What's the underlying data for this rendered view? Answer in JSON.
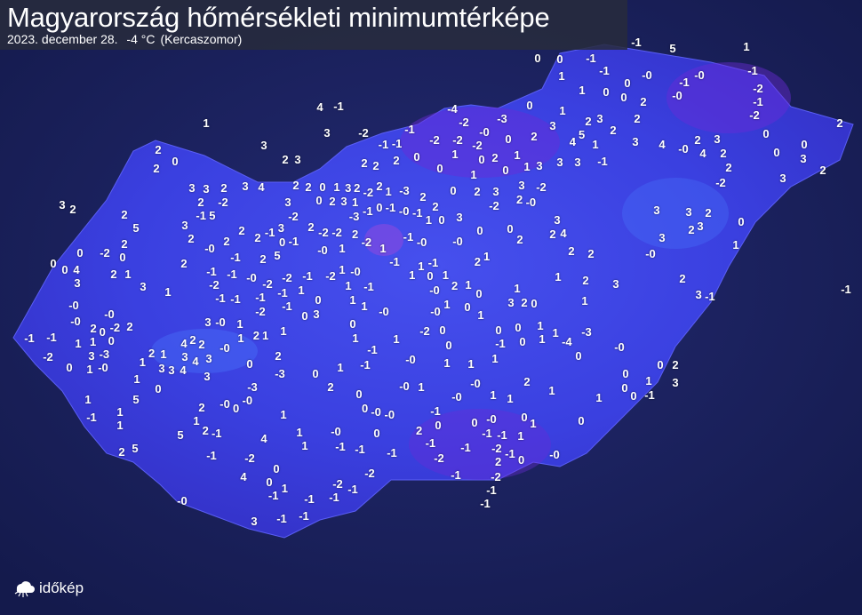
{
  "header": {
    "title": "Magyarország hőmérsékleti minimumtérképe",
    "date": "2023. december 28.",
    "min_value": "-4 °C",
    "min_location": "(Kercaszomor)"
  },
  "logo": {
    "text": "időkép",
    "icon": "cloud-sun-icon"
  },
  "colors": {
    "background": "#1b2160",
    "map_fill": "#3b3fe0",
    "cold_areas": "#6a2ad8",
    "header_bg": "#2a2d3c"
  },
  "readings": [
    "0",
    "-1",
    "-1",
    "5",
    "1",
    "0",
    "-1",
    "1",
    "-0",
    "-0",
    "-1",
    "-1",
    "1",
    "0",
    "0",
    "2",
    "0",
    "-0",
    "-2",
    "-1",
    "-2",
    "2",
    "1",
    "4",
    "-1",
    "3",
    "3",
    "2",
    "3",
    "2",
    "0",
    "2",
    "-4",
    "-3",
    "0",
    "-2",
    "-1",
    "1",
    "-2",
    "-0",
    "-2",
    "-2",
    "-1",
    "-2",
    "0",
    "2",
    "3",
    "2",
    "3",
    "2",
    "5",
    "4",
    "1",
    "2",
    "3",
    "4",
    "-0",
    "2",
    "3",
    "4",
    "2",
    "0",
    "0",
    "0",
    "3",
    "2",
    "2",
    "3",
    "-2",
    "2",
    "2",
    "2",
    "0",
    "1",
    "0",
    "2",
    "1",
    "3",
    "3",
    "3",
    "-1",
    "-1",
    "0",
    "1",
    "0",
    "1",
    "3",
    "3",
    "2",
    "3",
    "4",
    "2",
    "2",
    "0",
    "1",
    "3",
    "2",
    "2",
    "-2",
    "0",
    "2",
    "3",
    "1",
    "-2",
    "2",
    "1",
    "-3",
    "2",
    "0",
    "2",
    "3",
    "3",
    "-2",
    "2",
    "-2",
    "-0",
    "3",
    "2",
    "2",
    "-1",
    "5",
    "3",
    "-2",
    "-3",
    "-1",
    "0",
    "-1",
    "-0",
    "-1",
    "2",
    "0",
    "3",
    "3",
    "3",
    "3",
    "2",
    "0",
    "5",
    "3",
    "2",
    "2",
    "2",
    "2",
    "-1",
    "3",
    "-1",
    "2",
    "-2",
    "-2",
    "1",
    "2",
    "-2",
    "-1",
    "-0",
    "1",
    "0",
    "0",
    "2",
    "2",
    "4",
    "3",
    "2",
    "3",
    "1",
    "2",
    "-2",
    "0",
    "0",
    "-0",
    "-1",
    "2",
    "5",
    "0",
    "-0",
    "1",
    "-1",
    "-0",
    "1",
    "2",
    "2",
    "2",
    "-0",
    "0",
    "0",
    "4",
    "2",
    "2",
    "1",
    "3",
    "1",
    "-1",
    "-1",
    "-0",
    "-2",
    "-2",
    "-1",
    "-2",
    "1",
    "-0",
    "1",
    "1",
    "-1",
    "1",
    "0",
    "3",
    "-2",
    "-1",
    "-1",
    "-1",
    "-1",
    "1",
    "1",
    "-1",
    "-0",
    "2",
    "1",
    "0",
    "1",
    "1",
    "2",
    "3",
    "2",
    "3",
    "-1",
    "-1",
    "-0",
    "-2",
    "-1",
    "0",
    "0",
    "3",
    "1",
    "1",
    "-0",
    "1",
    "-0",
    "0",
    "1",
    "3",
    "2",
    "0",
    "1",
    "-0",
    "-0",
    "2",
    "-2",
    "2",
    "3",
    "-0",
    "1",
    "2",
    "1",
    "0",
    "-2",
    "0",
    "0",
    "0",
    "1",
    "1",
    "-3",
    "-1",
    "-1",
    "1",
    "1",
    "0",
    "0",
    "2",
    "4",
    "2",
    "-0",
    "1",
    "1",
    "1",
    "1",
    "0",
    "-1",
    "0",
    "1",
    "-4",
    "-2",
    "0",
    "3",
    "-3",
    "1",
    "-0",
    "1",
    "2",
    "1",
    "3",
    "3",
    "4",
    "3",
    "3",
    "4",
    "3",
    "2",
    "0",
    "-1",
    "-1",
    "-0",
    "1",
    "1",
    "1",
    "0",
    "-0",
    "0",
    "0",
    "2",
    "1",
    "0",
    "-3",
    "0",
    "1",
    "2",
    "-0",
    "1",
    "-0",
    "2",
    "1",
    "1",
    "3",
    "1",
    "5",
    "-3",
    "-0",
    "0",
    "-0",
    "0",
    "0",
    "-0",
    "1",
    "1",
    "1",
    "0",
    "0",
    "-1",
    "-1",
    "1",
    "2",
    "1",
    "1",
    "-0",
    "-0",
    "-1",
    "1",
    "0",
    "1",
    "0",
    "5",
    "2",
    "-1",
    "4",
    "1",
    "-0",
    "0",
    "2",
    "0",
    "0",
    "-0",
    "-1",
    "-1",
    "1",
    "2",
    "5",
    "-1",
    "1",
    "-1",
    "-1",
    "-1",
    "-1",
    "-1",
    "-2",
    "-1",
    "0",
    "-0",
    "-2",
    "2",
    "-2",
    "4",
    "0",
    "0",
    "1",
    "-1",
    "-2",
    "-1",
    "-2",
    "-1",
    "-1",
    "-1",
    "-2",
    "-1",
    "-1",
    "-0",
    "3",
    "-1",
    "-1"
  ]
}
